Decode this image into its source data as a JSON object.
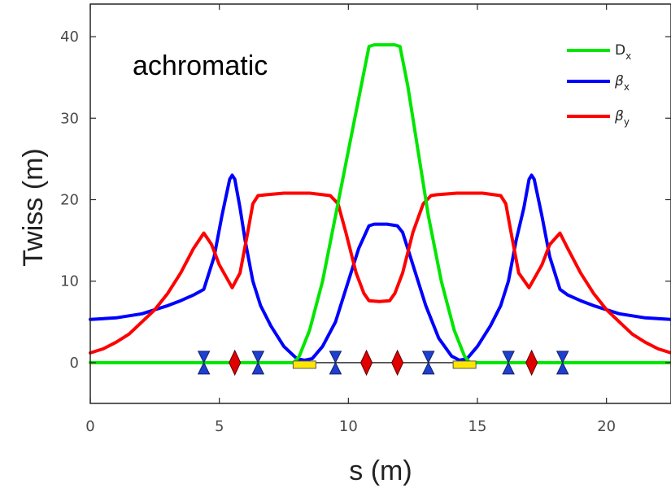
{
  "chart_data": {
    "type": "line",
    "title": "",
    "annotation": "achromatic",
    "xlabel": "s (m)",
    "ylabel": "Twiss (m)",
    "xlim": [
      0,
      22.5
    ],
    "ylim": [
      -5,
      44
    ],
    "xticks": [
      0,
      5,
      10,
      15,
      20
    ],
    "yticks": [
      0,
      10,
      20,
      30,
      40
    ],
    "grid": false,
    "legend": {
      "placement": "top-right",
      "entries": [
        {
          "symbol": "D",
          "sub": "x",
          "color": "#00e600"
        },
        {
          "symbol": "β",
          "sub": "x",
          "color": "#0000ff"
        },
        {
          "symbol": "β",
          "sub": "y",
          "color": "#ff0000"
        }
      ]
    },
    "series": [
      {
        "name": "D_x",
        "color": "#00e600",
        "x": [
          0,
          7.9,
          8.1,
          8.5,
          9.0,
          9.5,
          10.0,
          10.5,
          10.8,
          11.0,
          11.2,
          11.5,
          11.8,
          12.0,
          12.3,
          12.7,
          13.1,
          13.6,
          14.1,
          14.5,
          14.7,
          22.5
        ],
        "y": [
          0,
          0,
          0.8,
          4,
          10,
          18,
          26,
          34,
          38.8,
          39,
          39,
          39,
          39,
          38.8,
          34,
          26,
          18,
          10,
          4,
          0.8,
          0,
          0
        ]
      },
      {
        "name": "β_x",
        "color": "#0000ff",
        "x": [
          0,
          1,
          2,
          3,
          3.5,
          4.0,
          4.4,
          4.8,
          5.1,
          5.4,
          5.5,
          5.6,
          5.8,
          6.0,
          6.3,
          6.6,
          7.0,
          7.5,
          8.0,
          8.3,
          8.6,
          9.0,
          9.5,
          10.0,
          10.4,
          10.8,
          11.0,
          11.5,
          11.9,
          12.1,
          12.5,
          13.0,
          13.5,
          14.0,
          14.3,
          14.6,
          15.0,
          15.5,
          15.9,
          16.2,
          16.5,
          16.8,
          17.0,
          17.1,
          17.2,
          17.5,
          17.8,
          18.2,
          18.5,
          19.0,
          19.5,
          20.5,
          21.5,
          22.5
        ],
        "y": [
          5.3,
          5.5,
          6.0,
          7.0,
          7.6,
          8.3,
          9.0,
          13,
          18,
          22.5,
          23,
          22.5,
          19,
          15,
          10,
          7,
          4.5,
          2.0,
          0.5,
          0.3,
          0.5,
          2,
          5,
          10,
          14,
          16.8,
          17,
          17,
          16.8,
          16,
          12,
          7,
          3,
          0.8,
          0.3,
          0.5,
          2.0,
          4.5,
          7,
          10,
          15,
          19,
          22.5,
          23,
          22.5,
          18,
          13,
          9.0,
          8.3,
          7.6,
          7.0,
          6.0,
          5.5,
          5.3
        ]
      },
      {
        "name": "β_y",
        "color": "#ff0000",
        "x": [
          0,
          0.5,
          1.0,
          1.5,
          2.0,
          2.5,
          3.0,
          3.5,
          4.0,
          4.4,
          4.7,
          5.0,
          5.5,
          5.8,
          6.1,
          6.3,
          6.5,
          6.8,
          7.5,
          8.5,
          9.3,
          9.6,
          9.9,
          10.3,
          10.6,
          10.8,
          11.2,
          11.6,
          11.8,
          12.1,
          12.5,
          12.9,
          13.2,
          13.4,
          14.2,
          15.2,
          15.9,
          16.1,
          16.3,
          16.6,
          17.0,
          17.5,
          17.8,
          18.2,
          18.5,
          19.0,
          19.5,
          20.0,
          20.5,
          21.0,
          21.5,
          22.0,
          22.5
        ],
        "y": [
          1.2,
          1.7,
          2.5,
          3.5,
          5.0,
          6.5,
          8.5,
          11,
          14,
          15.9,
          14.5,
          12,
          9.2,
          11,
          16,
          19.5,
          20.5,
          20.6,
          20.8,
          20.8,
          20.5,
          19.5,
          16,
          11,
          8.5,
          7.6,
          7.5,
          7.6,
          8.5,
          11,
          16,
          19.5,
          20.5,
          20.6,
          20.8,
          20.8,
          20.5,
          19.5,
          16,
          11,
          9.2,
          12,
          14.5,
          15.9,
          14,
          11,
          8.5,
          6.5,
          5.0,
          3.5,
          2.5,
          1.7,
          1.2
        ]
      }
    ],
    "lattice": {
      "beamline_y": 0,
      "beamline_color": "#333333",
      "elements": [
        {
          "kind": "defocusing-quad",
          "s": 4.4,
          "color": "#1f3fd0"
        },
        {
          "kind": "focusing-quad",
          "s": 5.6,
          "color": "#e00000"
        },
        {
          "kind": "defocusing-quad",
          "s": 6.5,
          "color": "#1f3fd0"
        },
        {
          "kind": "dipole",
          "s": 8.3,
          "color": "#ffe600"
        },
        {
          "kind": "defocusing-quad",
          "s": 9.5,
          "color": "#1f3fd0"
        },
        {
          "kind": "focusing-quad",
          "s": 10.7,
          "color": "#e00000"
        },
        {
          "kind": "focusing-quad",
          "s": 11.9,
          "color": "#e00000"
        },
        {
          "kind": "defocusing-quad",
          "s": 13.1,
          "color": "#1f3fd0"
        },
        {
          "kind": "dipole",
          "s": 14.5,
          "color": "#ffe600"
        },
        {
          "kind": "defocusing-quad",
          "s": 16.2,
          "color": "#1f3fd0"
        },
        {
          "kind": "focusing-quad",
          "s": 17.1,
          "color": "#e00000"
        },
        {
          "kind": "defocusing-quad",
          "s": 18.3,
          "color": "#1f3fd0"
        }
      ]
    }
  }
}
